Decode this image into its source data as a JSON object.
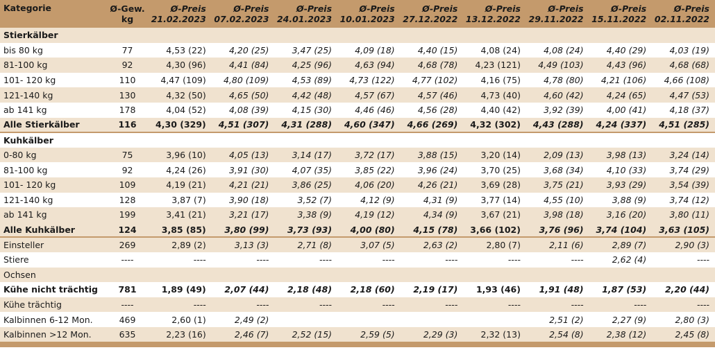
{
  "header": {
    "kategorie": "Kategorie",
    "gew_line1": "Ø-Gew.",
    "gew_line2": "kg",
    "preis_label": "Ø-Preis",
    "dates": [
      "21.02.2023",
      "07.02.2023",
      "24.01.2023",
      "10.01.2023",
      "27.12.2022",
      "13.12.2022",
      "29.11.2022",
      "15.11.2022",
      "02.11.2022"
    ]
  },
  "rows": [
    {
      "type": "group",
      "label": "Stierkälber",
      "gew": "",
      "prices": [
        "",
        "",
        "",
        "",
        "",
        "",
        "",
        "",
        ""
      ]
    },
    {
      "type": "white",
      "label": "bis 80 kg",
      "gew": "77",
      "prices": [
        "4,53 (22)",
        "4,20 (25)",
        "3,47 (25)",
        "4,09 (18)",
        "4,40 (15)",
        "4,08 (24)",
        "4,08 (24)",
        "4,40 (29)",
        "4,03 (19)"
      ]
    },
    {
      "type": "alt",
      "label": "81-100 kg",
      "gew": "92",
      "prices": [
        "4,30 (96)",
        "4,41 (84)",
        "4,25 (96)",
        "4,63 (94)",
        "4,68 (78)",
        "4,23 (121)",
        "4,49 (103)",
        "4,43 (96)",
        "4,68 (68)"
      ]
    },
    {
      "type": "white",
      "label": "101- 120 kg",
      "gew": "110",
      "prices": [
        "4,47 (109)",
        "4,80 (109)",
        "4,53 (89)",
        "4,73 (122)",
        "4,77 (102)",
        "4,16 (75)",
        "4,78 (80)",
        "4,21 (106)",
        "4,66 (108)"
      ]
    },
    {
      "type": "alt",
      "label": "121-140 kg",
      "gew": "130",
      "prices": [
        "4,32 (50)",
        "4,65 (50)",
        "4,42 (48)",
        "4,57 (67)",
        "4,57 (46)",
        "4,73 (40)",
        "4,60 (42)",
        "4,24 (65)",
        "4,47 (53)"
      ]
    },
    {
      "type": "white",
      "label": "ab 141 kg",
      "gew": "178",
      "prices": [
        "4,04 (52)",
        "4,08 (39)",
        "4,15 (30)",
        "4,46 (46)",
        "4,56 (28)",
        "4,40 (42)",
        "3,92 (39)",
        "4,00 (41)",
        "4,18 (37)"
      ]
    },
    {
      "type": "total",
      "label": "Alle Stierkälber",
      "gew": "116",
      "prices": [
        "4,30 (329)",
        "4,51 (307)",
        "4,31 (288)",
        "4,60 (347)",
        "4,66 (269)",
        "4,32 (302)",
        "4,43 (288)",
        "4,24 (337)",
        "4,51 (285)"
      ]
    },
    {
      "type": "groupw",
      "label": "Kuhkälber",
      "gew": "",
      "prices": [
        "",
        "",
        "",
        "",
        "",
        "",
        "",
        "",
        ""
      ]
    },
    {
      "type": "alt",
      "label": "0-80 kg",
      "gew": "75",
      "prices": [
        "3,96 (10)",
        "4,05 (13)",
        "3,14 (17)",
        "3,72 (17)",
        "3,88 (15)",
        "3,20 (14)",
        "2,09 (13)",
        "3,98 (13)",
        "3,24 (14)"
      ]
    },
    {
      "type": "white",
      "label": "81-100 kg",
      "gew": "92",
      "prices": [
        "4,24 (26)",
        "3,91 (30)",
        "4,07 (35)",
        "3,85 (22)",
        "3,96 (24)",
        "3,70 (25)",
        "3,68 (34)",
        "4,10 (33)",
        "3,74 (29)"
      ]
    },
    {
      "type": "alt",
      "label": "101- 120 kg",
      "gew": "109",
      "prices": [
        "4,19 (21)",
        "4,21 (21)",
        "3,86 (25)",
        "4,06 (20)",
        "4,26 (21)",
        "3,69 (28)",
        "3,75 (21)",
        "3,93 (29)",
        "3,54 (39)"
      ]
    },
    {
      "type": "white",
      "label": "121-140 kg",
      "gew": "128",
      "prices": [
        "3,87 (7)",
        "3,90 (18)",
        "3,52 (7)",
        "4,12 (9)",
        "4,31 (9)",
        "3,77 (14)",
        "4,55 (10)",
        "3,88 (9)",
        "3,74 (12)"
      ]
    },
    {
      "type": "alt",
      "label": "ab 141 kg",
      "gew": "199",
      "prices": [
        "3,41 (21)",
        "3,21 (17)",
        "3,38 (9)",
        "4,19 (12)",
        "4,34 (9)",
        "3,67 (21)",
        "3,98 (18)",
        "3,16 (20)",
        "3,80 (11)"
      ]
    },
    {
      "type": "totalw",
      "label": "Alle Kuhkälber",
      "gew": "124",
      "prices": [
        "3,85 (85)",
        "3,80 (99)",
        "3,73 (93)",
        "4,00 (80)",
        "4,15 (78)",
        "3,66 (102)",
        "3,76 (96)",
        "3,74 (104)",
        "3,63 (105)"
      ]
    },
    {
      "type": "alt",
      "label": "Einsteller",
      "gew": "269",
      "prices": [
        "2,89 (2)",
        "3,13 (3)",
        "2,71 (8)",
        "3,07 (5)",
        "2,63 (2)",
        "2,80 (7)",
        "2,11 (6)",
        "2,89 (7)",
        "2,90 (3)"
      ]
    },
    {
      "type": "white",
      "label": "Stiere",
      "gew": "----",
      "prices": [
        "----",
        "----",
        "----",
        "----",
        "----",
        "----",
        "----",
        "2,62 (4)",
        "----"
      ]
    },
    {
      "type": "alt",
      "label": "Ochsen",
      "gew": "",
      "prices": [
        "",
        "",
        "",
        "",
        "",
        "",
        "",
        "",
        ""
      ]
    },
    {
      "type": "boldw",
      "label": "Kühe nicht trächtig",
      "gew": "781",
      "prices": [
        "1,89 (49)",
        "2,07 (44)",
        "2,18 (48)",
        "2,18 (60)",
        "2,19 (17)",
        "1,93 (46)",
        "1,91 (48)",
        "1,87 (53)",
        "2,20 (44)"
      ]
    },
    {
      "type": "alt",
      "label": "Kühe trächtig",
      "gew": "----",
      "prices": [
        "----",
        "----",
        "----",
        "----",
        "----",
        "----",
        "----",
        "----",
        "----"
      ]
    },
    {
      "type": "white",
      "label": "Kalbinnen 6-12 Mon.",
      "gew": "469",
      "prices": [
        "2,60 (1)",
        "2,49 (2)",
        "",
        "",
        "",
        "",
        "2,51 (2)",
        "2,27 (9)",
        "2,80 (3)"
      ]
    },
    {
      "type": "alt",
      "label": "Kalbinnen >12 Mon.",
      "gew": "635",
      "prices": [
        "2,23 (16)",
        "2,46 (7)",
        "2,52 (15)",
        "2,59 (5)",
        "2,29 (3)",
        "2,32 (13)",
        "2,54 (8)",
        "2,38 (12)",
        "2,45 (8)"
      ]
    }
  ]
}
